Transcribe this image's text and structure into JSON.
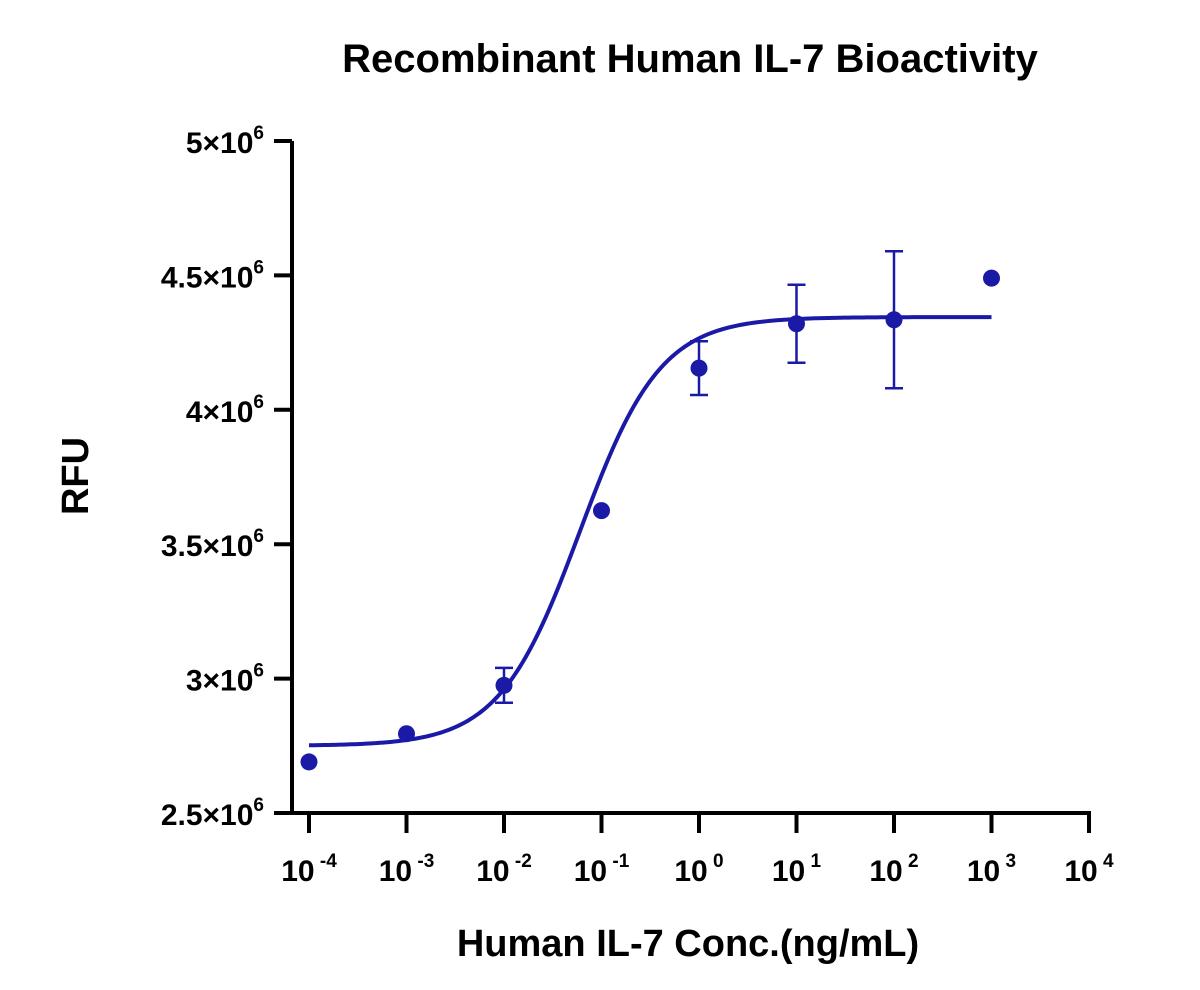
{
  "chart_data": {
    "type": "scatter",
    "title": "Recombinant Human IL-7 Bioactivity",
    "xlabel": "Human IL-7 Conc.(ng/mL)",
    "ylabel": "RFU",
    "x_scale": "log",
    "xlim": [
      0.0001,
      10000
    ],
    "ylim": [
      2500000,
      5000000
    ],
    "x_ticks": [
      {
        "base": "10",
        "exp": "-4",
        "value": 0.0001
      },
      {
        "base": "10",
        "exp": "-3",
        "value": 0.001
      },
      {
        "base": "10",
        "exp": "-2",
        "value": 0.01
      },
      {
        "base": "10",
        "exp": "-1",
        "value": 0.1
      },
      {
        "base": "10",
        "exp": "0",
        "value": 1
      },
      {
        "base": "10",
        "exp": "1",
        "value": 10
      },
      {
        "base": "10",
        "exp": "2",
        "value": 100
      },
      {
        "base": "10",
        "exp": "3",
        "value": 1000
      },
      {
        "base": "10",
        "exp": "4",
        "value": 10000
      }
    ],
    "y_ticks": [
      {
        "mantissa": "2.5",
        "exp": "6",
        "value": 2500000
      },
      {
        "mantissa": "3",
        "exp": "6",
        "value": 3000000
      },
      {
        "mantissa": "3.5",
        "exp": "6",
        "value": 3500000
      },
      {
        "mantissa": "4",
        "exp": "6",
        "value": 4000000
      },
      {
        "mantissa": "4.5",
        "exp": "6",
        "value": 4500000
      },
      {
        "mantissa": "5",
        "exp": "6",
        "value": 5000000
      }
    ],
    "points": [
      {
        "x": 0.0001,
        "y": 2690000,
        "err": 0
      },
      {
        "x": 0.001,
        "y": 2795000,
        "err": 0
      },
      {
        "x": 0.01,
        "y": 2975000,
        "err": 65000
      },
      {
        "x": 0.1,
        "y": 3625000,
        "err": 0
      },
      {
        "x": 1,
        "y": 4155000,
        "err": 100000
      },
      {
        "x": 10,
        "y": 4320000,
        "err": 145000
      },
      {
        "x": 100,
        "y": 4335000,
        "err": 255000
      },
      {
        "x": 1000,
        "y": 4490000,
        "err": 0
      }
    ],
    "fit": {
      "model": "4PL",
      "bottom": 2750000,
      "top": 4345000,
      "ec50": 0.06,
      "hill": 1.05,
      "x_range": [
        0.0001,
        1000
      ]
    },
    "colors": {
      "series": "#1a1aa6",
      "axis": "#000000"
    },
    "grid": false,
    "legend": "none"
  }
}
